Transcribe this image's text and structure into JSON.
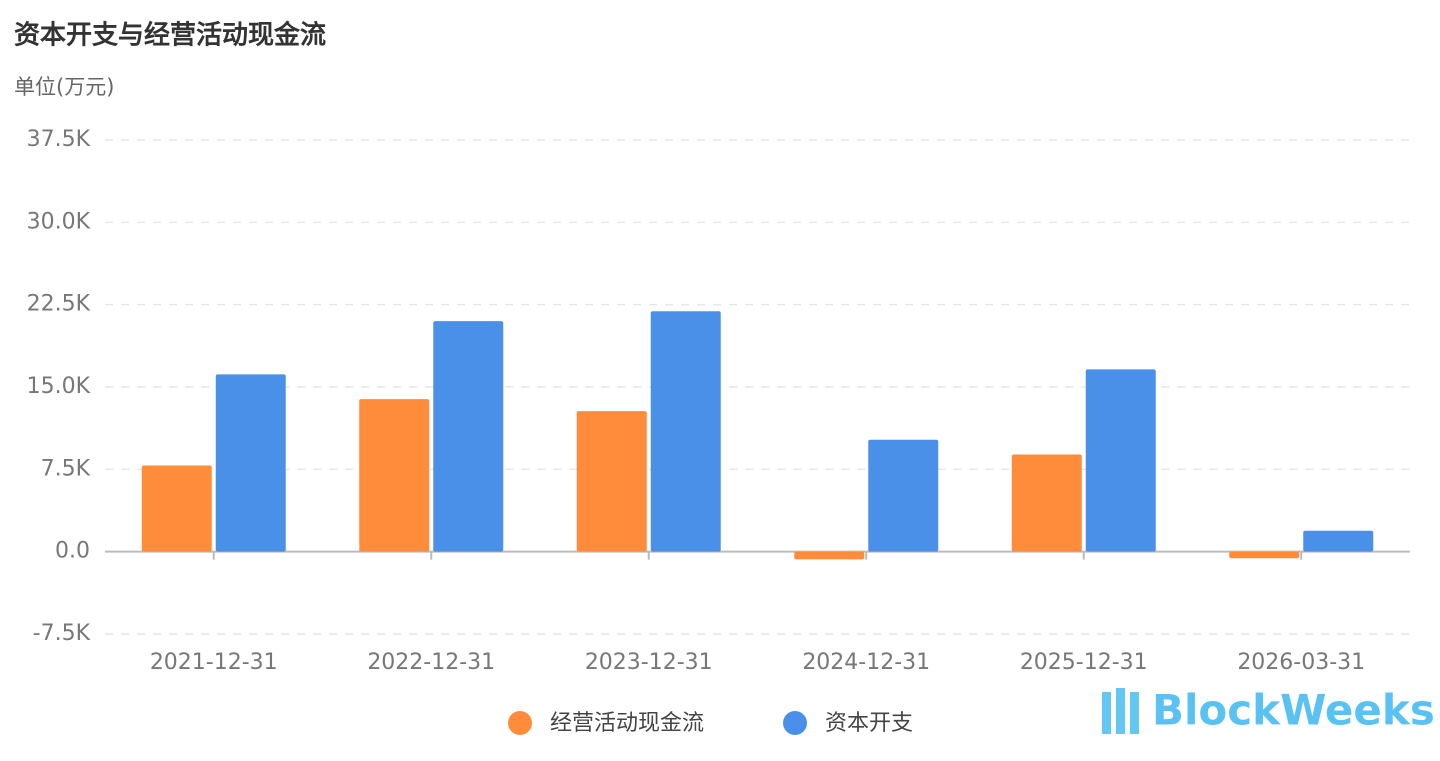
{
  "chart_data": {
    "type": "bar",
    "title": "资本开支与经营活动现金流",
    "subtitle": "单位(万元)",
    "categories": [
      "2021-12-31",
      "2022-12-31",
      "2023-12-31",
      "2024-12-31",
      "2025-12-31",
      "2026-03-31"
    ],
    "series": [
      {
        "name": "经营活动现金流",
        "color": "#ff8c3a",
        "values": [
          7850,
          13900,
          12800,
          -700,
          8850,
          -600
        ]
      },
      {
        "name": "资本开支",
        "color": "#4a90e8",
        "values": [
          16150,
          21000,
          21900,
          10200,
          16600,
          1900
        ]
      }
    ],
    "ylim": [
      -7500,
      37500
    ],
    "yticks": [
      {
        "value": -7500,
        "label": "-7.5K"
      },
      {
        "value": 0,
        "label": "0.0"
      },
      {
        "value": 7500,
        "label": "7.5K"
      },
      {
        "value": 15000,
        "label": "15.0K"
      },
      {
        "value": 22500,
        "label": "22.5K"
      },
      {
        "value": 30000,
        "label": "30.0K"
      },
      {
        "value": 37500,
        "label": "37.5K"
      }
    ],
    "grid": true,
    "legend": "bottom",
    "watermark": "BlockWeeks"
  }
}
